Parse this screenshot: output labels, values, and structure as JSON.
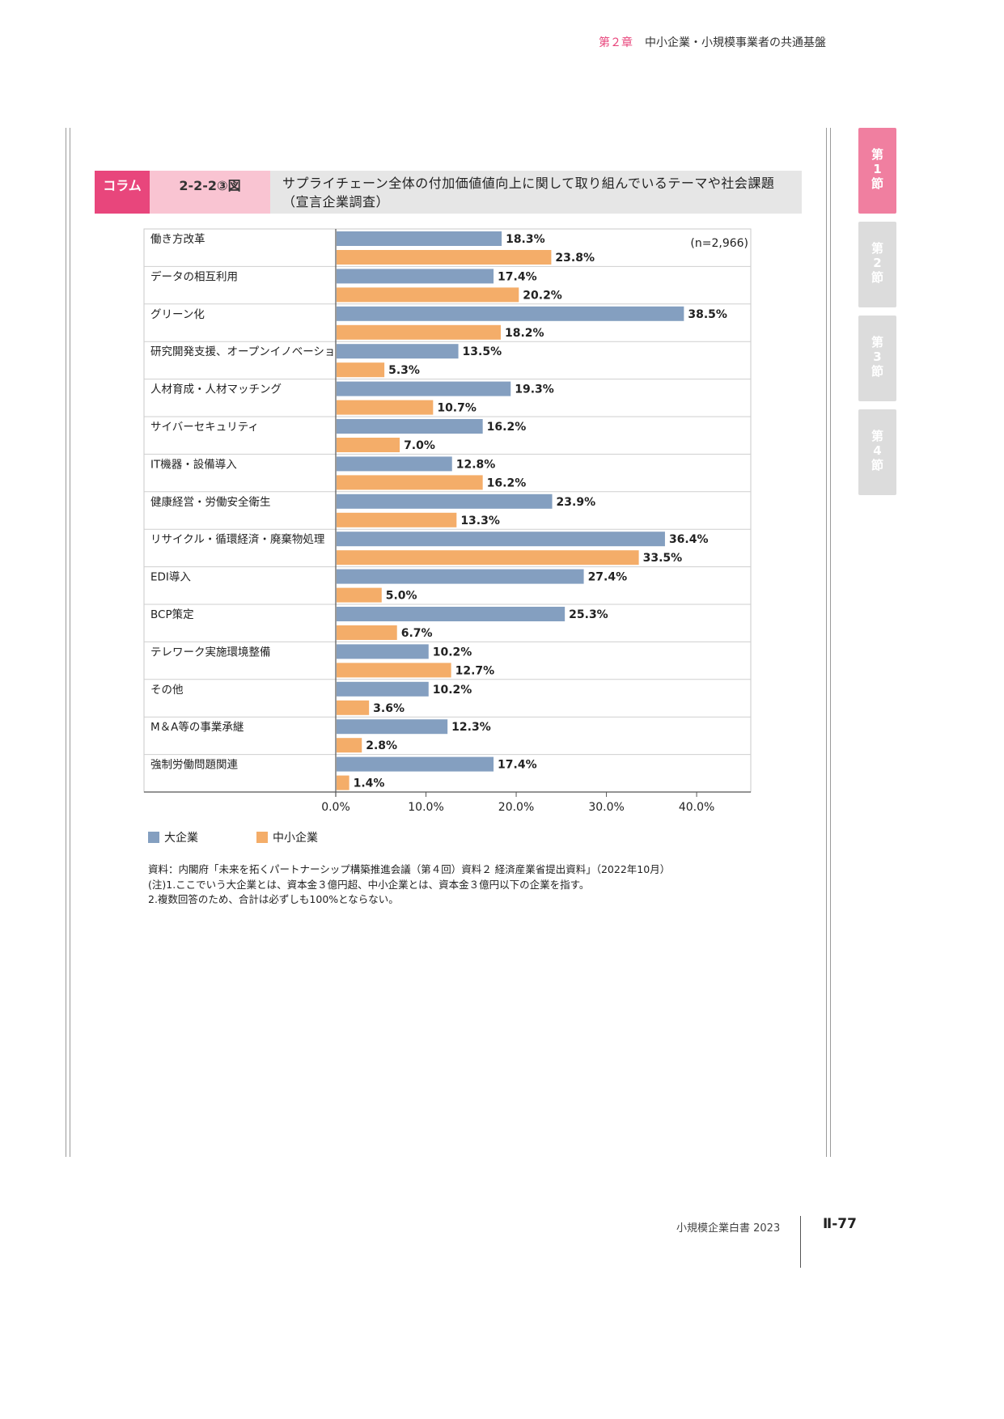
{
  "header": {
    "chapter": "第２章",
    "title": "中小企業・小規模事業者の共通基盤"
  },
  "side_tabs": [
    {
      "label": "第\n1\n節",
      "active": true
    },
    {
      "label": "第\n2\n節",
      "active": false
    },
    {
      "label": "第\n3\n節",
      "active": false
    },
    {
      "label": "第\n4\n節",
      "active": false
    }
  ],
  "figure": {
    "column_label": "コラム",
    "number": "2-2-2③図",
    "title": "サプライチェーン全体の付加価値値向上に関して取り組んでいるテーマや社会課題（宣言企業調査）"
  },
  "chart_data": {
    "type": "bar",
    "orientation": "horizontal",
    "sample_note": "(n=2,966)",
    "categories": [
      "働き方改革",
      "データの相互利用",
      "グリーン化",
      "研究開発支援、オープンイノベーション",
      "人材育成・人材マッチング",
      "サイバーセキュリティ",
      "IT機器・設備導入",
      "健康経営・労働安全衛生",
      "リサイクル・循環経済・廃棄物処理",
      "EDI導入",
      "BCP策定",
      "テレワーク実施環境整備",
      "その他",
      "M＆A等の事業承継",
      "強制労働問題関連"
    ],
    "series": [
      {
        "name": "大企業",
        "color": "#849fc0",
        "values": [
          18.3,
          17.4,
          38.5,
          13.5,
          19.3,
          16.2,
          12.8,
          23.9,
          36.4,
          27.4,
          25.3,
          10.2,
          10.2,
          12.3,
          17.4
        ],
        "labels": [
          "18.3%",
          "17.4%",
          "38.5%",
          "13.5%",
          "19.3%",
          "16.2%",
          "12.8%",
          "23.9%",
          "36.4%",
          "27.4%",
          "25.3%",
          "10.2%",
          "10.2%",
          "12.3%",
          "17.4%"
        ]
      },
      {
        "name": "中小企業",
        "color": "#f4ad69",
        "values": [
          23.8,
          20.2,
          18.2,
          5.3,
          10.7,
          7.0,
          16.2,
          13.3,
          33.5,
          5.0,
          6.7,
          12.7,
          3.6,
          2.8,
          1.4
        ],
        "labels": [
          "23.8%",
          "20.2%",
          "18.2%",
          "5.3%",
          "10.7%",
          "7.0%",
          "16.2%",
          "13.3%",
          "33.5%",
          "5.0%",
          "6.7%",
          "12.7%",
          "3.6%",
          "2.8%",
          "1.4%"
        ]
      }
    ],
    "x_ticks": [
      "0.0%",
      "10.0%",
      "20.0%",
      "30.0%",
      "40.0%"
    ],
    "xlim": [
      0,
      46
    ],
    "legend_position": "bottom-left"
  },
  "notes": [
    "資料：内閣府「未来を拓くパートナーシップ構築推進会議（第４回）資料２ 経済産業省提出資料」（2022年10月）",
    "(注)1.ここでいう大企業とは、資本金３億円超、中小企業とは、資本金３億円以下の企業を指す。",
    "2.複数回答のため、合計は必ずしも100%とならない。"
  ],
  "footer": {
    "book": "小規模企業白書 2023",
    "page": "Ⅱ-77"
  }
}
